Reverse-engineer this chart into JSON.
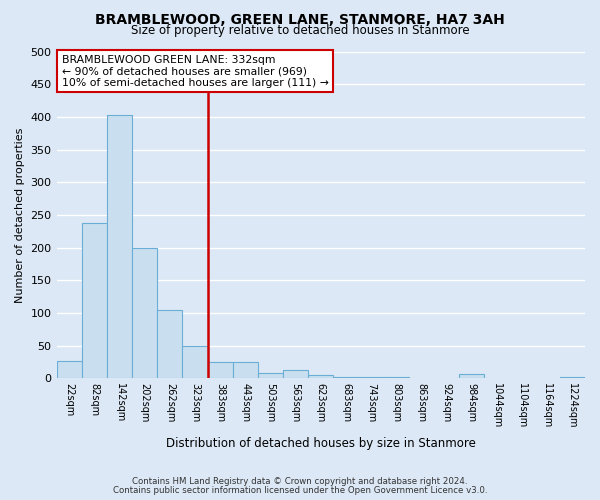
{
  "title": "BRAMBLEWOOD, GREEN LANE, STANMORE, HA7 3AH",
  "subtitle": "Size of property relative to detached houses in Stanmore",
  "xlabel": "Distribution of detached houses by size in Stanmore",
  "ylabel": "Number of detached properties",
  "bin_labels": [
    "22sqm",
    "82sqm",
    "142sqm",
    "202sqm",
    "262sqm",
    "323sqm",
    "383sqm",
    "443sqm",
    "503sqm",
    "563sqm",
    "623sqm",
    "683sqm",
    "743sqm",
    "803sqm",
    "863sqm",
    "924sqm",
    "984sqm",
    "1044sqm",
    "1104sqm",
    "1164sqm",
    "1224sqm"
  ],
  "bar_heights": [
    26,
    238,
    403,
    199,
    105,
    49,
    25,
    25,
    8,
    12,
    5,
    2,
    2,
    2,
    1,
    0,
    6,
    1,
    0,
    0,
    2
  ],
  "bar_color": "#c9dff0",
  "bar_edge_color": "#6aaed6",
  "vline_color": "#cc0000",
  "annotation_text": "BRAMBLEWOOD GREEN LANE: 332sqm\n← 90% of detached houses are smaller (969)\n10% of semi-detached houses are larger (111) →",
  "annotation_box_edge": "#cc0000",
  "ylim_max": 500,
  "ytick_step": 50,
  "background_color": "#dce8f5",
  "grid_color": "#ffffff",
  "footer1": "Contains HM Land Registry data © Crown copyright and database right 2024.",
  "footer2": "Contains public sector information licensed under the Open Government Licence v3.0."
}
